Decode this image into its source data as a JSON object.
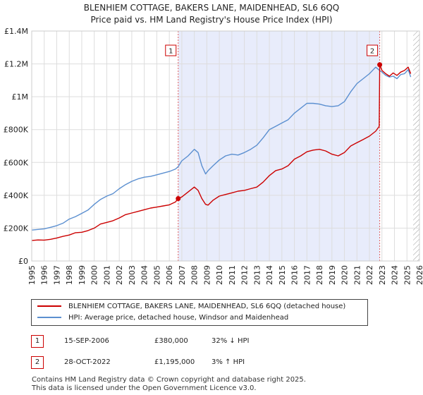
{
  "chart_data": {
    "type": "line",
    "title": "BLENHIEM COTTAGE, BAKERS LANE, MAIDENHEAD, SL6 6QQ",
    "subtitle": "Price paid vs. HM Land Registry's House Price Index (HPI)",
    "xlabel": "",
    "ylabel": "",
    "xlim": [
      1995,
      2026
    ],
    "ylim": [
      0,
      1400000
    ],
    "x_ticks": [
      "1995",
      "1996",
      "1997",
      "1998",
      "1999",
      "2000",
      "2001",
      "2002",
      "2003",
      "2004",
      "2005",
      "2006",
      "2007",
      "2008",
      "2009",
      "2010",
      "2011",
      "2012",
      "2013",
      "2014",
      "2015",
      "2016",
      "2017",
      "2018",
      "2019",
      "2020",
      "2021",
      "2022",
      "2023",
      "2024",
      "2025",
      "2026"
    ],
    "y_ticks": [
      {
        "value": 0,
        "label": "£0"
      },
      {
        "value": 200000,
        "label": "£200K"
      },
      {
        "value": 400000,
        "label": "£400K"
      },
      {
        "value": 600000,
        "label": "£600K"
      },
      {
        "value": 800000,
        "label": "£800K"
      },
      {
        "value": 1000000,
        "label": "£1M"
      },
      {
        "value": 1200000,
        "label": "£1.2M"
      },
      {
        "value": 1400000,
        "label": "£1.4M"
      }
    ],
    "grid": true,
    "shaded_ranges": [
      {
        "from": 2006.71,
        "to": 2022.82,
        "color": "#e8ecfb"
      }
    ],
    "hatched_range": {
      "from": 2025.5,
      "to": 2026
    },
    "series": [
      {
        "name": "BLENHIEM COTTAGE, BAKERS LANE, MAIDENHEAD, SL6 6QQ (detached house)",
        "color": "#cc0000",
        "x": [
          1995.0,
          1995.5,
          1996.0,
          1996.5,
          1997.0,
          1997.5,
          1998.0,
          1998.5,
          1999.0,
          1999.5,
          2000.0,
          2000.5,
          2001.0,
          2001.5,
          2002.0,
          2002.5,
          2003.0,
          2003.5,
          2004.0,
          2004.5,
          2005.0,
          2005.5,
          2006.0,
          2006.5,
          2006.71,
          2007.0,
          2007.5,
          2008.0,
          2008.3,
          2008.6,
          2008.9,
          2009.1,
          2009.5,
          2010.0,
          2010.5,
          2011.0,
          2011.5,
          2012.0,
          2012.5,
          2013.0,
          2013.5,
          2014.0,
          2014.5,
          2015.0,
          2015.5,
          2016.0,
          2016.5,
          2017.0,
          2017.5,
          2018.0,
          2018.5,
          2019.0,
          2019.5,
          2020.0,
          2020.5,
          2021.0,
          2021.5,
          2022.0,
          2022.5,
          2022.78,
          2022.82,
          2023.0,
          2023.3,
          2023.6,
          2023.9,
          2024.2,
          2024.5,
          2024.8,
          2025.1,
          2025.3
        ],
        "y": [
          125000,
          128000,
          127000,
          132000,
          140000,
          150000,
          158000,
          172000,
          175000,
          185000,
          200000,
          225000,
          235000,
          245000,
          262000,
          282000,
          292000,
          302000,
          312000,
          322000,
          328000,
          335000,
          342000,
          360000,
          380000,
          390000,
          420000,
          450000,
          430000,
          380000,
          345000,
          340000,
          370000,
          395000,
          405000,
          415000,
          425000,
          430000,
          440000,
          450000,
          480000,
          520000,
          550000,
          560000,
          580000,
          620000,
          640000,
          665000,
          675000,
          680000,
          670000,
          650000,
          640000,
          660000,
          700000,
          720000,
          740000,
          760000,
          790000,
          820000,
          1195000,
          1160000,
          1140000,
          1125000,
          1145000,
          1130000,
          1150000,
          1160000,
          1180000,
          1140000
        ]
      },
      {
        "name": "HPI: Average price, detached house, Windsor and Maidenhead",
        "color": "#5b8fd0",
        "x": [
          1995.0,
          1995.5,
          1996.0,
          1996.5,
          1997.0,
          1997.5,
          1998.0,
          1998.5,
          1999.0,
          1999.5,
          2000.0,
          2000.5,
          2001.0,
          2001.5,
          2002.0,
          2002.5,
          2003.0,
          2003.5,
          2004.0,
          2004.5,
          2005.0,
          2005.5,
          2006.0,
          2006.5,
          2006.71,
          2007.0,
          2007.5,
          2008.0,
          2008.3,
          2008.6,
          2008.9,
          2009.1,
          2009.5,
          2010.0,
          2010.5,
          2011.0,
          2011.5,
          2012.0,
          2012.5,
          2013.0,
          2013.5,
          2014.0,
          2014.5,
          2015.0,
          2015.5,
          2016.0,
          2016.5,
          2017.0,
          2017.5,
          2018.0,
          2018.5,
          2019.0,
          2019.5,
          2020.0,
          2020.5,
          2021.0,
          2021.5,
          2022.0,
          2022.5,
          2022.82,
          2023.0,
          2023.3,
          2023.6,
          2023.9,
          2024.2,
          2024.5,
          2024.8,
          2025.1,
          2025.3
        ],
        "y": [
          188000,
          192000,
          196000,
          205000,
          215000,
          230000,
          255000,
          270000,
          290000,
          310000,
          345000,
          375000,
          395000,
          410000,
          440000,
          465000,
          485000,
          500000,
          510000,
          515000,
          525000,
          535000,
          545000,
          560000,
          575000,
          610000,
          640000,
          680000,
          660000,
          580000,
          530000,
          550000,
          580000,
          615000,
          640000,
          650000,
          645000,
          660000,
          680000,
          705000,
          750000,
          800000,
          820000,
          840000,
          860000,
          900000,
          930000,
          960000,
          960000,
          955000,
          945000,
          940000,
          945000,
          970000,
          1030000,
          1080000,
          1110000,
          1140000,
          1180000,
          1160000,
          1150000,
          1130000,
          1120000,
          1125000,
          1110000,
          1135000,
          1140000,
          1165000,
          1120000
        ]
      }
    ],
    "sales": [
      {
        "label": "1",
        "x": 2006.71,
        "y": 380000,
        "date": "15-SEP-2006",
        "price": "£380,000",
        "hpi": "32% ↓ HPI"
      },
      {
        "label": "2",
        "x": 2022.82,
        "y": 1195000,
        "date": "28-OCT-2022",
        "price": "£1,195,000",
        "hpi": "3% ↑ HPI"
      }
    ]
  },
  "legend": {
    "property_label": "BLENHIEM COTTAGE, BAKERS LANE, MAIDENHEAD, SL6 6QQ (detached house)",
    "hpi_label": "HPI: Average price, detached house, Windsor and Maidenhead"
  },
  "footer": {
    "line1": "Contains HM Land Registry data © Crown copyright and database right 2025.",
    "line2": "This data is licensed under the Open Government Licence v3.0."
  },
  "colors": {
    "property": "#cc0000",
    "hpi": "#5b8fd0",
    "shade": "#e8ecfb",
    "grid": "#dddddd"
  }
}
